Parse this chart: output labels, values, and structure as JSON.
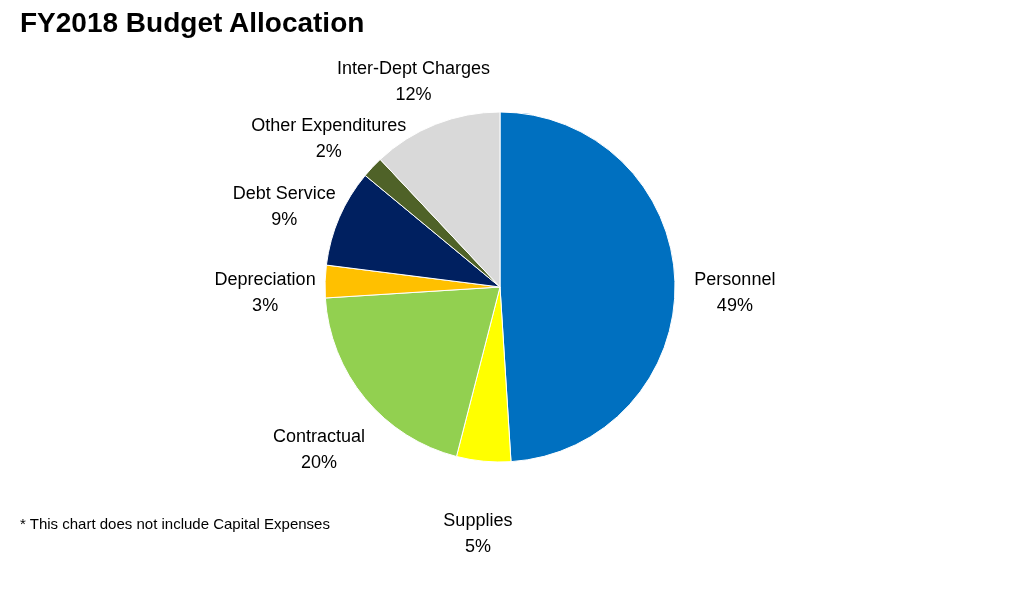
{
  "chart_data": {
    "type": "pie",
    "title": "FY2018 Budget Allocation",
    "categories": [
      "Personnel",
      "Supplies",
      "Contractual",
      "Depreciation",
      "Debt Service",
      "Other Expenditures",
      "Inter-Dept Charges"
    ],
    "values": [
      49,
      5,
      20,
      3,
      9,
      2,
      12
    ],
    "value_labels": [
      "49%",
      "5%",
      "20%",
      "3%",
      "9%",
      "2%",
      "12%"
    ],
    "colors": [
      "#0070c0",
      "#ffff00",
      "#92d050",
      "#ffc000",
      "#002060",
      "#4f6228",
      "#d9d9d9"
    ],
    "legend": false,
    "annotations": [
      "* This chart does not include Capital Expenses"
    ]
  }
}
